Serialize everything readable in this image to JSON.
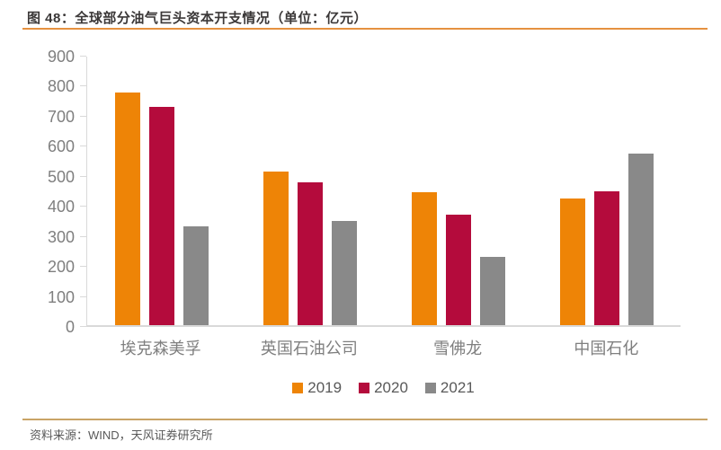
{
  "header": {
    "title": "图 48：全球部分油气巨头资本开支情况（单位：亿元）"
  },
  "footer": {
    "source": "资料来源：WIND，天风证券研究所"
  },
  "colors": {
    "title_text": "#3b3838",
    "title_rule": "#e59140",
    "footer_rule": "#c9a466",
    "axis_line": "#d9d9d9",
    "tick_label": "#7f7f7f",
    "legend_text": "#595959",
    "series_2019": "#ee8406",
    "series_2020": "#b40b3c",
    "series_2021": "#898989"
  },
  "chart_data": {
    "type": "bar",
    "title": "图 48：全球部分油气巨头资本开支情况（单位：亿元）",
    "categories": [
      "埃克森美孚",
      "英国石油公司",
      "雪佛龙",
      "中国石化"
    ],
    "series": [
      {
        "name": "2019",
        "color": "#ee8406",
        "values": [
          780,
          515,
          445,
          425
        ]
      },
      {
        "name": "2020",
        "color": "#b40b3c",
        "values": [
          730,
          480,
          370,
          450
        ]
      },
      {
        "name": "2021",
        "color": "#898989",
        "values": [
          330,
          350,
          230,
          575
        ]
      }
    ],
    "xlabel": "",
    "ylabel": "",
    "ylim": [
      0,
      900
    ],
    "yticks": [
      0,
      100,
      200,
      300,
      400,
      500,
      600,
      700,
      800,
      900
    ],
    "grid": false,
    "legend_position": "bottom"
  }
}
